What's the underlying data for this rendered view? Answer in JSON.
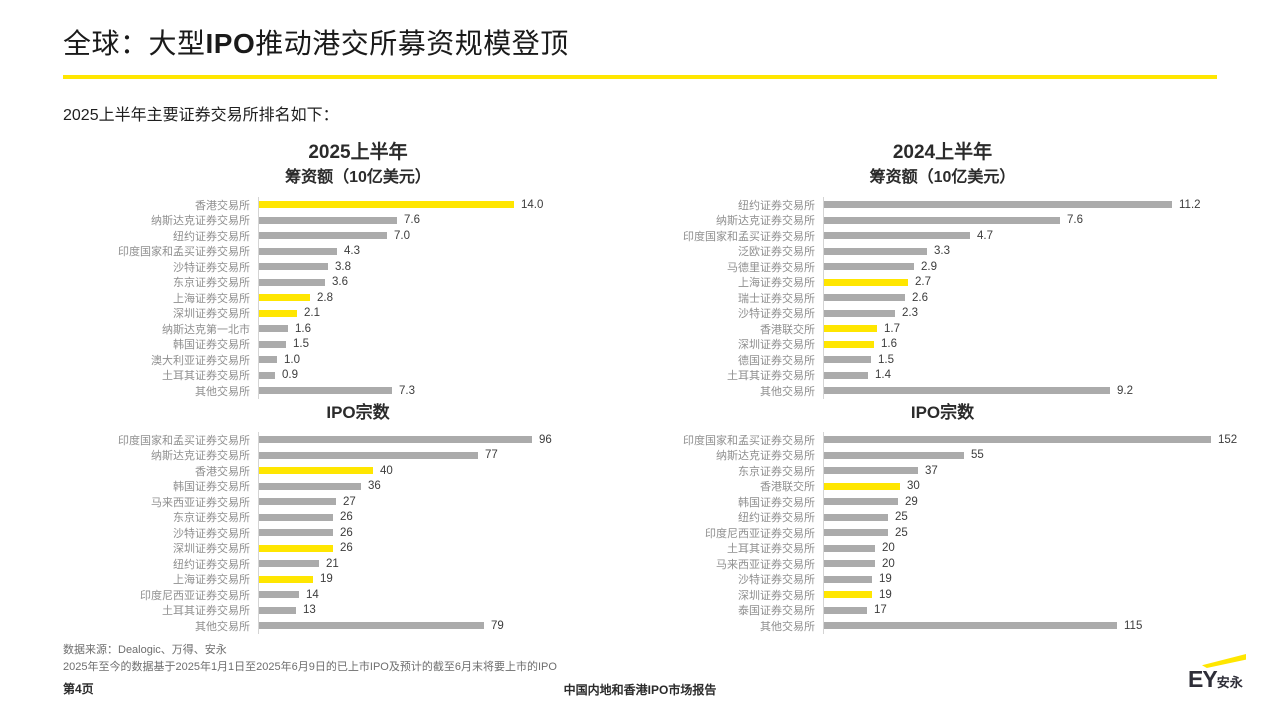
{
  "page": {
    "title": {
      "pre": "全球：大型",
      "em": "IPO",
      "post": "推动港交所募资规模登顶"
    },
    "subtitle": "2025上半年主要证券交易所排名如下：",
    "footer": {
      "source": "数据来源：Dealogic、万得、安永",
      "note": "2025年至今的数据基于2025年1月1日至2025年6月9日的已上市IPO及预计的截至6月末将要上市的IPO",
      "page_number": "第4页",
      "doc_title": "中国内地和香港IPO市场报告"
    },
    "logo": {
      "latin": "EY",
      "cn": "安永"
    }
  },
  "colors": {
    "accent_yellow": "#FFE600",
    "bar_gray": "#ABABAB",
    "axis_gray": "#D4D4D4",
    "label_gray": "#8F8F8F",
    "value_dark": "#3C3C3C",
    "title_black": "#1A1A1A"
  },
  "chart_data": [
    {
      "type": "bar",
      "orientation": "horizontal",
      "title": "2025上半年",
      "subtitle": "筹资额（10亿美元）",
      "unit": "10亿美元",
      "decimals": 1,
      "xlim": [
        0,
        14
      ],
      "grid": false,
      "legend": "none",
      "categories": [
        "香港交易所",
        "纳斯达克证券交易所",
        "纽约证券交易所",
        "印度国家和孟买证券交易所",
        "沙特证券交易所",
        "东京证券交易所",
        "上海证券交易所",
        "深圳证券交易所",
        "纳斯达克第一北市",
        "韩国证券交易所",
        "澳大利亚证券交易所",
        "土耳其证券交易所",
        "其他交易所"
      ],
      "values": [
        14.0,
        7.6,
        7.0,
        4.3,
        3.8,
        3.6,
        2.8,
        2.1,
        1.6,
        1.5,
        1.0,
        0.9,
        7.3
      ],
      "highlight": [
        true,
        false,
        false,
        false,
        false,
        false,
        true,
        true,
        false,
        false,
        false,
        false,
        false
      ]
    },
    {
      "type": "bar",
      "orientation": "horizontal",
      "title": "2024上半年",
      "subtitle": "筹资额（10亿美元）",
      "unit": "10亿美元",
      "decimals": 1,
      "xlim": [
        0,
        11.2
      ],
      "grid": false,
      "legend": "none",
      "categories": [
        "纽约证券交易所",
        "纳斯达克证券交易所",
        "印度国家和孟买证券交易所",
        "泛欧证券交易所",
        "马德里证券交易所",
        "上海证券交易所",
        "瑞士证券交易所",
        "沙特证券交易所",
        "香港联交所",
        "深圳证券交易所",
        "德国证券交易所",
        "土耳其证券交易所",
        "其他交易所"
      ],
      "values": [
        11.2,
        7.6,
        4.7,
        3.3,
        2.9,
        2.7,
        2.6,
        2.3,
        1.7,
        1.6,
        1.5,
        1.4,
        9.2
      ],
      "highlight": [
        false,
        false,
        false,
        false,
        false,
        true,
        false,
        false,
        true,
        true,
        false,
        false,
        false
      ]
    },
    {
      "type": "bar",
      "orientation": "horizontal",
      "title": "IPO宗数",
      "subtitle": "",
      "unit": "宗",
      "decimals": 0,
      "xlim": [
        0,
        96
      ],
      "grid": false,
      "legend": "none",
      "categories": [
        "印度国家和孟买证券交易所",
        "纳斯达克证券交易所",
        "香港交易所",
        "韩国证券交易所",
        "马来西亚证券交易所",
        "东京证券交易所",
        "沙特证券交易所",
        "深圳证券交易所",
        "纽约证券交易所",
        "上海证券交易所",
        "印度尼西亚证券交易所",
        "土耳其证券交易所",
        "其他交易所"
      ],
      "values": [
        96,
        77,
        40,
        36,
        27,
        26,
        26,
        26,
        21,
        19,
        14,
        13,
        79
      ],
      "highlight": [
        false,
        false,
        true,
        false,
        false,
        false,
        false,
        true,
        false,
        true,
        false,
        false,
        false
      ]
    },
    {
      "type": "bar",
      "orientation": "horizontal",
      "title": "IPO宗数",
      "subtitle": "",
      "unit": "宗",
      "decimals": 0,
      "xlim": [
        0,
        152
      ],
      "grid": false,
      "legend": "none",
      "categories": [
        "印度国家和孟买证券交易所",
        "纳斯达克证券交易所",
        "东京证券交易所",
        "香港联交所",
        "韩国证券交易所",
        "纽约证券交易所",
        "印度尼西亚证券交易所",
        "土耳其证券交易所",
        "马来西亚证券交易所",
        "沙特证券交易所",
        "深圳证券交易所",
        "泰国证券交易所",
        "其他交易所"
      ],
      "values": [
        152,
        55,
        37,
        30,
        29,
        25,
        25,
        20,
        20,
        19,
        19,
        17,
        115
      ],
      "highlight": [
        false,
        false,
        false,
        true,
        false,
        false,
        false,
        false,
        false,
        false,
        true,
        false,
        false
      ]
    }
  ]
}
